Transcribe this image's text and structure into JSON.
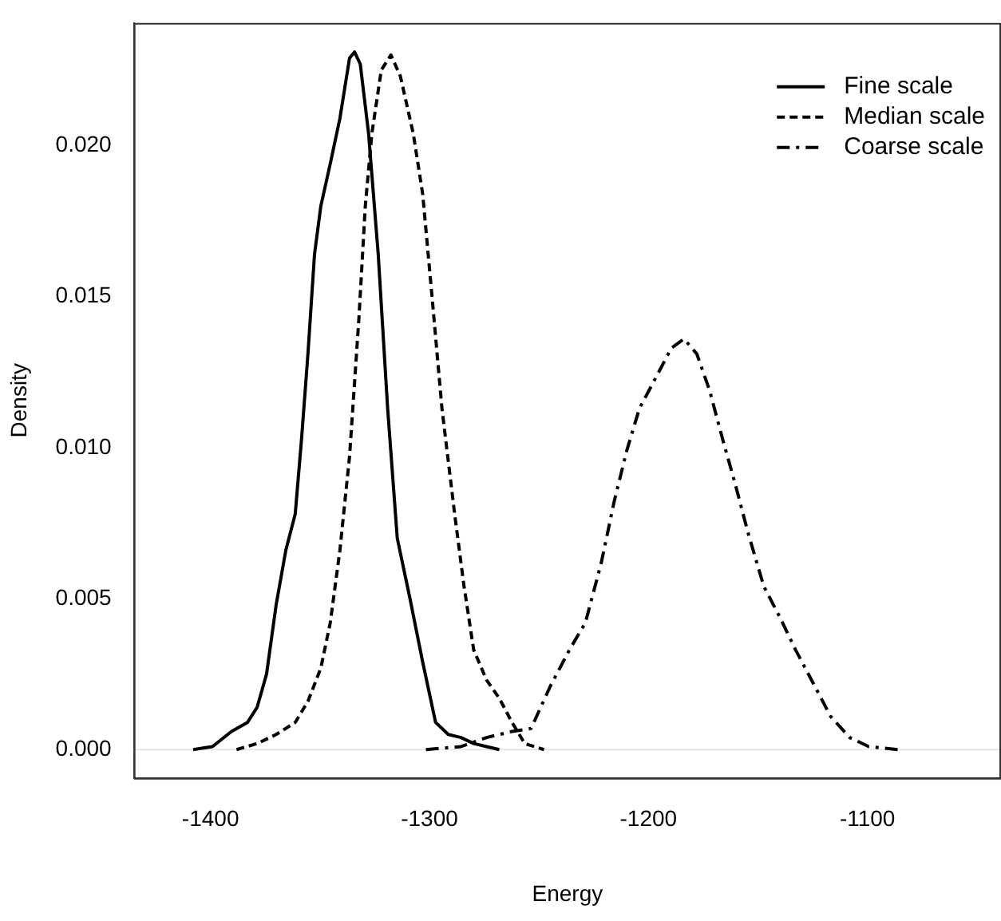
{
  "chart_data": {
    "type": "line",
    "xlabel": "Energy",
    "ylabel": "Density",
    "xlim": [
      -1435,
      -1039
    ],
    "xticks": [
      -1400,
      -1300,
      -1200,
      -1100
    ],
    "ylim": [
      -0.00094,
      0.02406
    ],
    "yticks": [
      {
        "value": 0,
        "label": "0.000"
      },
      {
        "value": 0.005,
        "label": "0.005"
      },
      {
        "value": 0.01,
        "label": "0.010"
      },
      {
        "value": 0.015,
        "label": "0.015"
      },
      {
        "value": 0.02,
        "label": "0.020"
      }
    ],
    "grid": false,
    "legend": "top right",
    "marker": "none",
    "ref_lines": [
      {
        "axis": "y",
        "value": 0,
        "label": null,
        "color": "#e6e6e6"
      }
    ],
    "series": [
      {
        "name": "Fine scale",
        "color": "#000000",
        "line_style": "solid",
        "x": [
          -1407.9,
          -1399.1,
          -1390.4,
          -1383.1,
          -1378.7,
          -1374.4,
          -1370,
          -1365.6,
          -1361.3,
          -1358.4,
          -1355.5,
          -1352.5,
          -1349.6,
          -1345.3,
          -1340.9,
          -1336.5,
          -1334.2,
          -1331.6,
          -1327.8,
          -1323.4,
          -1319.1,
          -1314.7,
          -1308.9,
          -1303.1,
          -1297.2,
          -1291.4,
          -1285.6,
          -1279.8,
          -1273.9,
          -1268.1
        ],
        "values": [
          0,
          0.0001,
          0.0006,
          0.0009,
          0.0014,
          0.0025,
          0.0048,
          0.0066,
          0.0078,
          0.0103,
          0.0131,
          0.0164,
          0.018,
          0.0194,
          0.0209,
          0.0229,
          0.0231,
          0.0227,
          0.0204,
          0.0164,
          0.0113,
          0.007,
          0.005,
          0.0029,
          0.0009,
          0.0005,
          0.0004,
          0.0002,
          0.0001,
          0
        ]
      },
      {
        "name": "Median scale",
        "color": "#000000",
        "line_style": "dashed",
        "x": [
          -1388.1,
          -1378.7,
          -1370,
          -1361.3,
          -1355.5,
          -1349.6,
          -1345.3,
          -1340.9,
          -1336.5,
          -1332.2,
          -1329.3,
          -1326.3,
          -1322,
          -1317.6,
          -1313.3,
          -1307.4,
          -1303.1,
          -1298.7,
          -1294.3,
          -1288.5,
          -1284.2,
          -1279.8,
          -1273.9,
          -1268.1,
          -1262.3,
          -1256.5,
          -1247.7
        ],
        "values": [
          0,
          0.0002,
          0.0005,
          0.0009,
          0.0016,
          0.0027,
          0.0042,
          0.0066,
          0.0097,
          0.0143,
          0.018,
          0.0204,
          0.0225,
          0.023,
          0.0223,
          0.0204,
          0.0184,
          0.0149,
          0.0113,
          0.0078,
          0.0054,
          0.0033,
          0.0023,
          0.0017,
          0.0009,
          0.0002,
          0
        ]
      },
      {
        "name": "Coarse scale",
        "color": "#000000",
        "line_style": "dashdot",
        "x": [
          -1301.6,
          -1285.6,
          -1273.9,
          -1262.3,
          -1253.6,
          -1244.8,
          -1236.1,
          -1228.8,
          -1221.5,
          -1215.7,
          -1209.9,
          -1204.1,
          -1195.3,
          -1189.5,
          -1183.7,
          -1177.9,
          -1172.1,
          -1166.2,
          -1160.4,
          -1154.6,
          -1147.3,
          -1140.1,
          -1132.8,
          -1125.5,
          -1116.8,
          -1108.1,
          -1099.4,
          -1086.2
        ],
        "values": [
          0,
          0.0001,
          0.0004,
          0.0006,
          0.0007,
          0.0021,
          0.0033,
          0.0042,
          0.0062,
          0.0082,
          0.0099,
          0.0113,
          0.0125,
          0.0133,
          0.0136,
          0.0131,
          0.0119,
          0.0103,
          0.0088,
          0.0072,
          0.0054,
          0.0044,
          0.0033,
          0.0023,
          0.0011,
          0.0004,
          0.0001,
          0
        ]
      }
    ]
  }
}
